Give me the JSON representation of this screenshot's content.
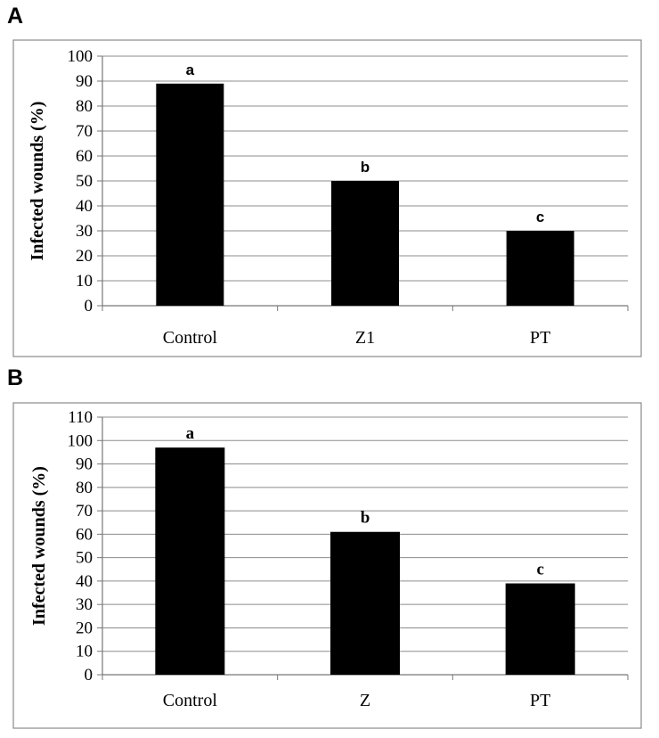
{
  "panels": {
    "a": {
      "letter": "A"
    },
    "b": {
      "letter": "B"
    }
  },
  "chart_data": [
    {
      "type": "bar",
      "title": "",
      "xlabel": "",
      "ylabel": "Infected wounds (%)",
      "categories": [
        "Control",
        "Z1",
        "PT"
      ],
      "values": [
        89,
        50,
        30
      ],
      "data_labels": [
        "a",
        "b",
        "c"
      ],
      "ylim": [
        0,
        100
      ],
      "ytick_step": 10,
      "grid": true,
      "bar_color": "#000000"
    },
    {
      "type": "bar",
      "title": "",
      "xlabel": "",
      "ylabel": "Infected wounds  (%)",
      "categories": [
        "Control",
        "Z",
        "PT"
      ],
      "values": [
        97,
        61,
        39
      ],
      "data_labels": [
        "a",
        "b",
        "c"
      ],
      "ylim": [
        0,
        110
      ],
      "ytick_step": 10,
      "grid": true,
      "bar_color": "#000000"
    }
  ]
}
